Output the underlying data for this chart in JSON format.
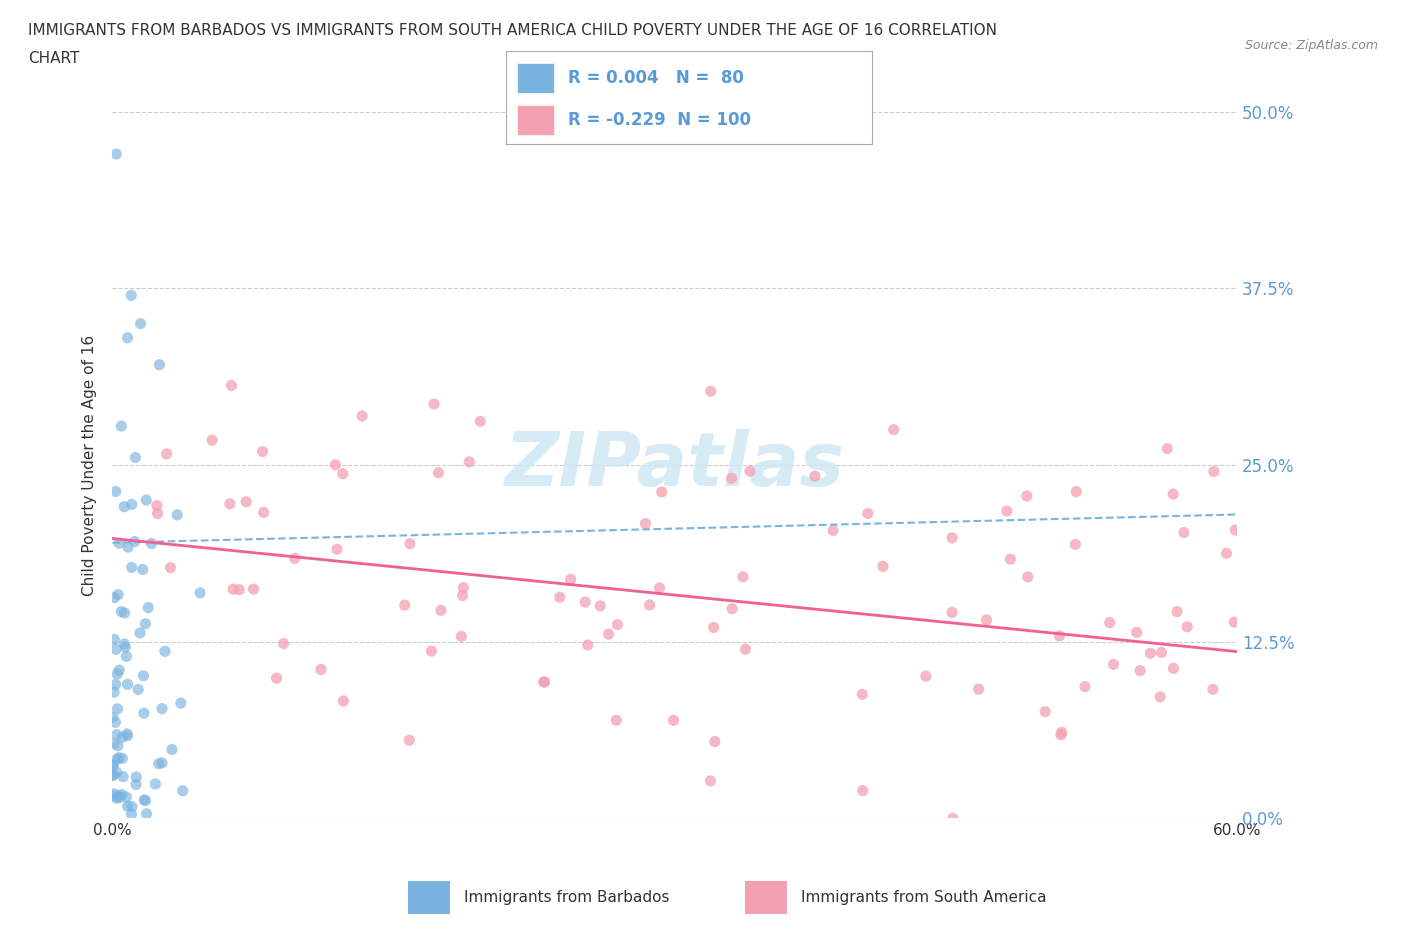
{
  "title_line1": "IMMIGRANTS FROM BARBADOS VS IMMIGRANTS FROM SOUTH AMERICA CHILD POVERTY UNDER THE AGE OF 16 CORRELATION",
  "title_line2": "CHART",
  "source": "Source: ZipAtlas.com",
  "ylabel": "Child Poverty Under the Age of 16",
  "xlim": [
    0.0,
    0.6
  ],
  "ylim": [
    0.0,
    0.5
  ],
  "ytick_positions": [
    0.0,
    0.125,
    0.25,
    0.375,
    0.5
  ],
  "ytick_labels": [
    "0.0%",
    "12.5%",
    "25.0%",
    "37.5%",
    "50.0%"
  ],
  "xtick_positions": [
    0.0,
    0.1,
    0.2,
    0.3,
    0.4,
    0.5,
    0.6
  ],
  "xtick_labels": [
    "0.0%",
    "",
    "",
    "",
    "",
    "",
    "60.0%"
  ],
  "barbados_color": "#7ab3e0",
  "south_america_color": "#f4a0b0",
  "barbados_line_color": "#7ab3e0",
  "south_america_line_color": "#f06090",
  "barbados_R": 0.004,
  "barbados_N": 80,
  "south_america_R": -0.229,
  "south_america_N": 100,
  "watermark_color": "#d0e8f5",
  "legend_label_1": "Immigrants from Barbados",
  "legend_label_2": "Immigrants from South America",
  "right_ytick_color": "#5b9bd5",
  "grid_color": "#cccccc",
  "background_color": "#ffffff",
  "text_color": "#333333",
  "legend_text_color": "#5b9bd5"
}
